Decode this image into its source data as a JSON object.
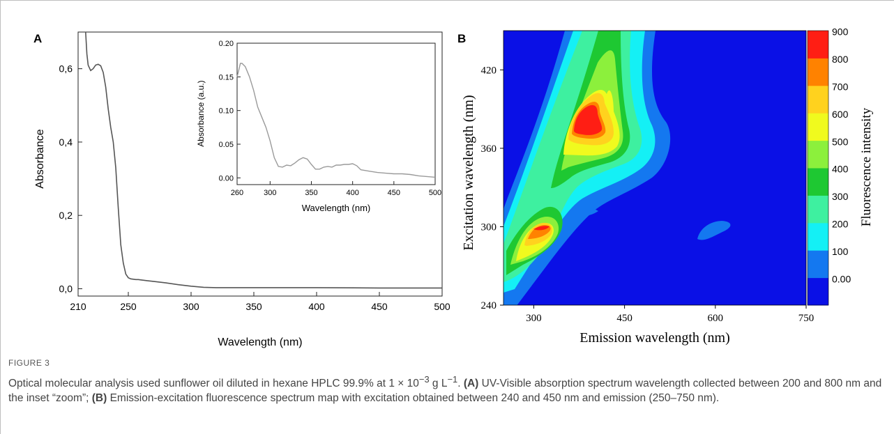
{
  "chart_data": [
    {
      "type": "line",
      "panel_label": "A",
      "xlabel": "Wavelength (nm)",
      "ylabel": "Absorbance",
      "xlim": [
        210,
        500
      ],
      "ylim": [
        -0.02,
        0.7
      ],
      "x_ticks": [
        "210",
        "250",
        "300",
        "350",
        "400",
        "450",
        "500"
      ],
      "y_ticks": [
        "0,0",
        "0,2",
        "0,4",
        "0,6"
      ],
      "x_tick_values": [
        210,
        250,
        300,
        350,
        400,
        450,
        500
      ],
      "y_tick_values": [
        0,
        0.2,
        0.4,
        0.6
      ],
      "series": [
        {
          "x": [
            216,
            217,
            218,
            220,
            222,
            224,
            226,
            228,
            230,
            232,
            234,
            236,
            238,
            240,
            242,
            244,
            246,
            248,
            250,
            252,
            254,
            256,
            258,
            260,
            265,
            270,
            280,
            290,
            300,
            310,
            320,
            350,
            400,
            450,
            500
          ],
          "y": [
            0.7,
            0.64,
            0.61,
            0.595,
            0.6,
            0.61,
            0.612,
            0.608,
            0.59,
            0.55,
            0.49,
            0.44,
            0.4,
            0.33,
            0.22,
            0.12,
            0.07,
            0.04,
            0.03,
            0.027,
            0.026,
            0.025,
            0.025,
            0.024,
            0.022,
            0.02,
            0.016,
            0.011,
            0.007,
            0.004,
            0.003,
            0.003,
            0.003,
            0.002,
            0.002
          ]
        }
      ],
      "inset": {
        "type": "line",
        "xlabel": "Wavelength (nm)",
        "ylabel": "Absorbance (a.u.)",
        "xlim": [
          260,
          500
        ],
        "ylim": [
          -0.01,
          0.2
        ],
        "x_ticks": [
          "260",
          "300",
          "350",
          "400",
          "450",
          "500"
        ],
        "y_ticks": [
          "0.00",
          "0.05",
          "0.10",
          "0.15",
          "0.20"
        ],
        "x_tick_values": [
          260,
          300,
          350,
          400,
          450,
          500
        ],
        "y_tick_values": [
          0,
          0.05,
          0.1,
          0.15,
          0.2
        ],
        "series": [
          {
            "x": [
              260,
              262,
              264,
              266,
              270,
              275,
              280,
              285,
              290,
              295,
              300,
              305,
              310,
              315,
              320,
              325,
              330,
              335,
              340,
              345,
              350,
              355,
              360,
              365,
              370,
              375,
              380,
              385,
              390,
              395,
              400,
              405,
              410,
              420,
              430,
              440,
              450,
              460,
              470,
              480,
              490,
              500
            ],
            "y": [
              0.15,
              0.16,
              0.17,
              0.17,
              0.165,
              0.15,
              0.13,
              0.105,
              0.09,
              0.075,
              0.055,
              0.03,
              0.017,
              0.016,
              0.019,
              0.018,
              0.022,
              0.027,
              0.03,
              0.028,
              0.02,
              0.013,
              0.013,
              0.016,
              0.017,
              0.016,
              0.019,
              0.019,
              0.02,
              0.02,
              0.021,
              0.018,
              0.012,
              0.01,
              0.008,
              0.007,
              0.006,
              0.006,
              0.005,
              0.003,
              0.002,
              0.001
            ]
          }
        ]
      }
    },
    {
      "type": "heatmap",
      "panel_label": "B",
      "xlabel": "Emission wavelength (nm)",
      "ylabel": "Excitation wavelength (nm)",
      "colorbar_label": "Fluorescence intensity",
      "xlim": [
        250,
        750
      ],
      "ylim": [
        240,
        450
      ],
      "x_ticks": [
        "300",
        "450",
        "600",
        "750"
      ],
      "y_ticks": [
        "240",
        "300",
        "360",
        "420"
      ],
      "x_tick_values": [
        300,
        450,
        600,
        750
      ],
      "y_tick_values": [
        240,
        300,
        360,
        420
      ],
      "levels": [
        "0.00",
        "100",
        "200",
        "300",
        "400",
        "500",
        "600",
        "700",
        "800",
        "900"
      ],
      "level_colors": [
        "#0a10e6",
        "#1478f0",
        "#14f0f5",
        "#3ef0a0",
        "#1ec832",
        "#8cf03c",
        "#f0fa1e",
        "#ffd21e",
        "#ff8200",
        "#ff1e14"
      ],
      "peaks": [
        {
          "emission": 397,
          "excitation": 380,
          "intensity": 920
        },
        {
          "emission": 310,
          "excitation": 299,
          "intensity": 850
        },
        {
          "emission": 600,
          "excitation": 296,
          "intensity": 150
        }
      ]
    }
  ],
  "figure_label": "FIGURE 3",
  "caption": {
    "part1": "Optical molecular analysis used sunflower oil diluted in hexane HPLC 99.9% at 1 × 10",
    "exp1": "−3",
    "part2": " g L",
    "exp2": "−1",
    "part3": ". ",
    "a_label": "(A)",
    "a_text": " UV-Visible absorption spectrum wavelength collected between 200 and 800 nm and the inset “zoom”; ",
    "b_label": "(B)",
    "b_text": " Emission-excitation fluorescence spectrum map with excitation obtained between 240 and 450 nm and emission (250–750 nm)."
  }
}
